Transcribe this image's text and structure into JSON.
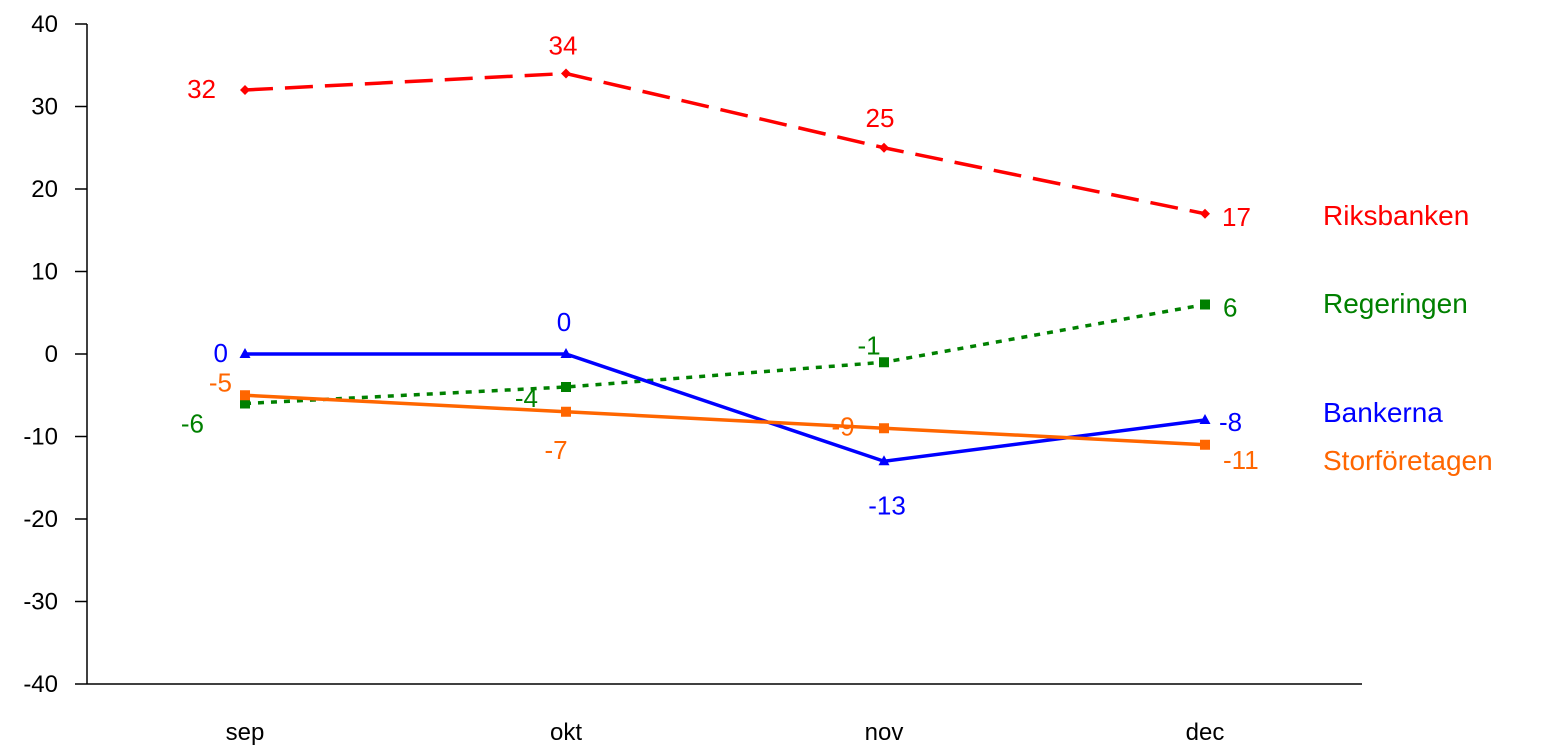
{
  "chart_data": {
    "type": "line",
    "title": "",
    "xlabel": "",
    "ylabel": "",
    "categories": [
      "sep",
      "okt",
      "nov",
      "dec"
    ],
    "ylim": [
      -40,
      40
    ],
    "yticks": [
      40,
      30,
      20,
      10,
      0,
      -10,
      -20,
      -30,
      -40
    ],
    "grid": false,
    "legend_placement": "right (labels at line ends)",
    "series": [
      {
        "name": "Riksbanken",
        "color": "#ff0000",
        "dash": "dashed",
        "marker": "diamond",
        "values": [
          32,
          34,
          25,
          17
        ]
      },
      {
        "name": "Regeringen",
        "color": "#008000",
        "dash": "dotted",
        "marker": "square",
        "values": [
          -6,
          -4,
          -1,
          6
        ]
      },
      {
        "name": "Bankerna",
        "color": "#0000ff",
        "dash": "solid",
        "marker": "triangle",
        "values": [
          0,
          0,
          -13,
          -8
        ]
      },
      {
        "name": "Storföretagen",
        "color": "#ff6600",
        "dash": "solid",
        "marker": "square",
        "values": [
          -5,
          -7,
          -9,
          -11
        ]
      }
    ]
  }
}
